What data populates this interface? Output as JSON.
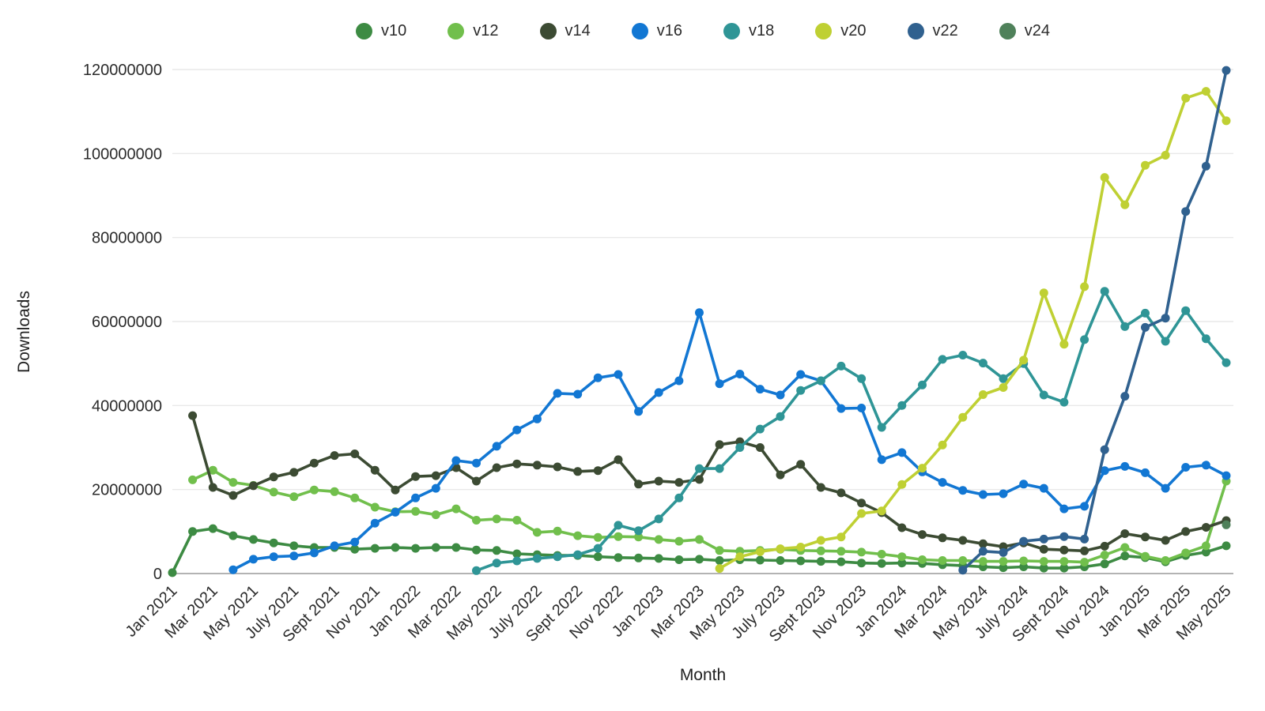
{
  "chart_data": {
    "type": "line",
    "title": "",
    "xlabel": "Month",
    "ylabel": "Downloads",
    "ylim": [
      0,
      120000000
    ],
    "grid": "horizontal",
    "legend_position": "top",
    "y_ticks": [
      0,
      20000000,
      40000000,
      60000000,
      80000000,
      100000000,
      120000000
    ],
    "x": [
      "Jan 2021",
      "Feb 2021",
      "Mar 2021",
      "Apr 2021",
      "May 2021",
      "June 2021",
      "July 2021",
      "Aug 2021",
      "Sept 2021",
      "Oct 2021",
      "Nov 2021",
      "Dec 2021",
      "Jan 2022",
      "Feb 2022",
      "Mar 2022",
      "Apr 2022",
      "May 2022",
      "June 2022",
      "July 2022",
      "Aug 2022",
      "Sept 2022",
      "Oct 2022",
      "Nov 2022",
      "Dec 2022",
      "Jan 2023",
      "Feb 2023",
      "Mar 2023",
      "Apr 2023",
      "May 2023",
      "June 2023",
      "July 2023",
      "Aug 2023",
      "Sept 2023",
      "Oct 2023",
      "Nov 2023",
      "Dec 2023",
      "Jan 2024",
      "Feb 2024",
      "Mar 2024",
      "Apr 2024",
      "May 2024",
      "June 2024",
      "July 2024",
      "Aug 2024",
      "Sept 2024",
      "Oct 2024",
      "Nov 2024",
      "Dec 2024",
      "Jan 2025",
      "Feb 2025",
      "Mar 2025",
      "Apr 2025",
      "May 2025"
    ],
    "x_tick_labels": [
      "Jan 2021",
      "Mar 2021",
      "May 2021",
      "July 2021",
      "Sept 2021",
      "Nov 2021",
      "Jan 2022",
      "Mar 2022",
      "May 2022",
      "July 2022",
      "Sept 2022",
      "Nov 2022",
      "Jan 2023",
      "Mar 2023",
      "May 2023",
      "July 2023",
      "Sept 2023",
      "Nov 2023",
      "Jan 2024",
      "Mar 2024",
      "May 2024",
      "July 2024",
      "Sept 2024",
      "Nov 2024",
      "Jan 2025",
      "Mar 2025",
      "May 2025"
    ],
    "series": [
      {
        "name": "v10",
        "color": "#3d8b43",
        "values": [
          200000,
          10000000,
          10700000,
          9000000,
          8100000,
          7300000,
          6600000,
          6200000,
          6200000,
          5800000,
          6000000,
          6200000,
          6000000,
          6200000,
          6200000,
          5600000,
          5500000,
          4700000,
          4500000,
          4300000,
          4300000,
          4000000,
          3800000,
          3700000,
          3600000,
          3300000,
          3400000,
          3100000,
          3300000,
          3200000,
          3100000,
          3000000,
          2900000,
          2800000,
          2500000,
          2400000,
          2500000,
          2400000,
          2100000,
          1900000,
          1600000,
          1400000,
          1600000,
          1300000,
          1300000,
          1600000,
          2300000,
          4200000,
          3800000,
          2800000,
          4300000,
          5100000,
          6600000
        ]
      },
      {
        "name": "v12",
        "color": "#71bf4c",
        "values": [
          null,
          22300000,
          24600000,
          21700000,
          21000000,
          19400000,
          18300000,
          19900000,
          19500000,
          18000000,
          15800000,
          14700000,
          14800000,
          14000000,
          15400000,
          12700000,
          13000000,
          12700000,
          9800000,
          10100000,
          9000000,
          8600000,
          8800000,
          8700000,
          8100000,
          7700000,
          8100000,
          5500000,
          5300000,
          5500000,
          5800000,
          5500000,
          5400000,
          5300000,
          5100000,
          4600000,
          4000000,
          3300000,
          3100000,
          3100000,
          2900000,
          2900000,
          3000000,
          2900000,
          2900000,
          2700000,
          4400000,
          6200000,
          4100000,
          3100000,
          4900000,
          6600000,
          22000000
        ]
      },
      {
        "name": "v14",
        "color": "#3c4b33",
        "values": [
          null,
          37600000,
          20500000,
          18600000,
          20900000,
          23000000,
          24100000,
          26300000,
          28100000,
          28500000,
          24600000,
          19900000,
          23100000,
          23300000,
          25200000,
          22000000,
          25200000,
          26100000,
          25800000,
          25400000,
          24300000,
          24500000,
          27100000,
          21300000,
          22000000,
          21700000,
          22400000,
          30700000,
          31400000,
          30000000,
          23500000,
          26000000,
          20500000,
          19200000,
          16800000,
          14500000,
          10900000,
          9300000,
          8500000,
          7900000,
          7100000,
          6400000,
          7300000,
          5800000,
          5600000,
          5400000,
          6500000,
          9500000,
          8700000,
          7900000,
          10000000,
          11000000,
          12600000
        ]
      },
      {
        "name": "v16",
        "color": "#1277d3",
        "values": [
          null,
          null,
          null,
          900000,
          3400000,
          4000000,
          4200000,
          4900000,
          6600000,
          7500000,
          12000000,
          14600000,
          18000000,
          20300000,
          26900000,
          26300000,
          30300000,
          34200000,
          36800000,
          42900000,
          42700000,
          46600000,
          47400000,
          38600000,
          43100000,
          45900000,
          62100000,
          45200000,
          47500000,
          43900000,
          42500000,
          47400000,
          45900000,
          39300000,
          39400000,
          27100000,
          28800000,
          24200000,
          21700000,
          19800000,
          18800000,
          19000000,
          21300000,
          20300000,
          15400000,
          16000000,
          24500000,
          25500000,
          24000000,
          20300000,
          25300000,
          25800000,
          23300000
        ]
      },
      {
        "name": "v18",
        "color": "#2f9596",
        "values": [
          null,
          null,
          null,
          null,
          null,
          null,
          null,
          null,
          null,
          null,
          null,
          null,
          null,
          null,
          null,
          700000,
          2500000,
          3000000,
          3600000,
          4000000,
          4500000,
          6000000,
          11500000,
          10200000,
          13000000,
          18000000,
          25000000,
          25000000,
          30000000,
          34400000,
          37400000,
          43600000,
          45900000,
          49400000,
          46400000,
          34800000,
          40000000,
          44900000,
          51000000,
          52000000,
          50100000,
          46400000,
          50000000,
          42500000,
          40800000,
          55700000,
          67200000,
          58800000,
          62000000,
          55300000,
          62600000,
          55900000,
          50200000
        ]
      },
      {
        "name": "v20",
        "color": "#bfd033",
        "values": [
          null,
          null,
          null,
          null,
          null,
          null,
          null,
          null,
          null,
          null,
          null,
          null,
          null,
          null,
          null,
          null,
          null,
          null,
          null,
          null,
          null,
          null,
          null,
          null,
          null,
          null,
          null,
          1200000,
          4000000,
          5200000,
          5900000,
          6300000,
          7900000,
          8700000,
          14300000,
          14900000,
          21200000,
          25100000,
          30600000,
          37200000,
          42600000,
          44300000,
          50800000,
          66800000,
          54600000,
          68300000,
          94300000,
          87800000,
          97200000,
          99600000,
          113200000,
          114800000,
          107800000
        ]
      },
      {
        "name": "v22",
        "color": "#30618f",
        "values": [
          null,
          null,
          null,
          null,
          null,
          null,
          null,
          null,
          null,
          null,
          null,
          null,
          null,
          null,
          null,
          null,
          null,
          null,
          null,
          null,
          null,
          null,
          null,
          null,
          null,
          null,
          null,
          null,
          null,
          null,
          null,
          null,
          null,
          null,
          null,
          null,
          null,
          null,
          null,
          800000,
          5300000,
          5000000,
          7700000,
          8200000,
          8800000,
          8200000,
          29500000,
          42200000,
          58600000,
          60800000,
          86200000,
          97000000,
          119800000
        ]
      },
      {
        "name": "v24",
        "color": "#4f815a",
        "values": [
          null,
          null,
          null,
          null,
          null,
          null,
          null,
          null,
          null,
          null,
          null,
          null,
          null,
          null,
          null,
          null,
          null,
          null,
          null,
          null,
          null,
          null,
          null,
          null,
          null,
          null,
          null,
          null,
          null,
          null,
          null,
          null,
          null,
          null,
          null,
          null,
          null,
          null,
          null,
          null,
          null,
          null,
          null,
          null,
          null,
          null,
          null,
          null,
          null,
          null,
          null,
          null,
          11600000
        ]
      }
    ]
  }
}
